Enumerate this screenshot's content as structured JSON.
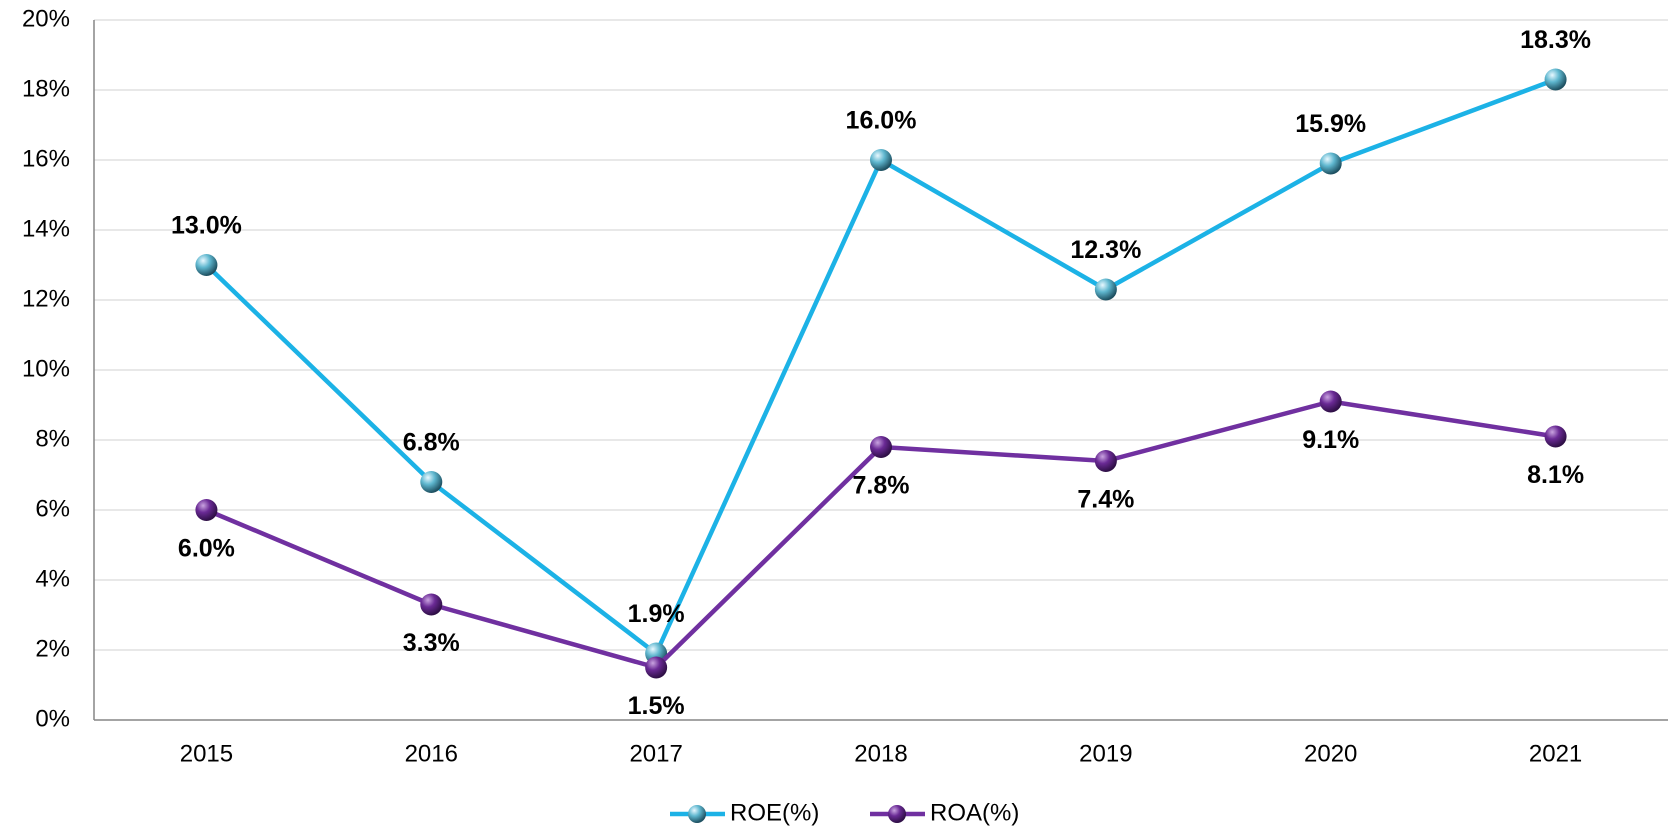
{
  "chart_data": {
    "type": "line",
    "categories": [
      "2015",
      "2016",
      "2017",
      "2018",
      "2019",
      "2020",
      "2021"
    ],
    "series": [
      {
        "name": "ROE(%)",
        "color": "#1cb2e6",
        "label_color": "#2e5b6b",
        "values": [
          13.0,
          6.8,
          1.9,
          16.0,
          12.3,
          15.9,
          18.3
        ],
        "value_labels": [
          "13.0%",
          "6.8%",
          "1.9%",
          "16.0%",
          "12.3%",
          "15.9%",
          "18.3%"
        ]
      },
      {
        "name": "ROA(%)",
        "color": "#7030a0",
        "label_color": "#7030a0",
        "values": [
          6.0,
          3.3,
          1.5,
          7.8,
          7.4,
          9.1,
          8.1
        ],
        "value_labels": [
          "6.0%",
          "3.3%",
          "1.5%",
          "7.8%",
          "7.4%",
          "9.1%",
          "8.1%"
        ]
      }
    ],
    "ylim": [
      0,
      20
    ],
    "yticks": [
      {
        "value": 0,
        "label": "0%"
      },
      {
        "value": 2,
        "label": "2%"
      },
      {
        "value": 4,
        "label": "4%"
      },
      {
        "value": 6,
        "label": "6%"
      },
      {
        "value": 8,
        "label": "8%"
      },
      {
        "value": 10,
        "label": "10%"
      },
      {
        "value": 12,
        "label": "12%"
      },
      {
        "value": 14,
        "label": "14%"
      },
      {
        "value": 16,
        "label": "16%"
      },
      {
        "value": 18,
        "label": "18%"
      },
      {
        "value": 20,
        "label": "20%"
      }
    ],
    "grid": true,
    "legend": "bottom"
  }
}
